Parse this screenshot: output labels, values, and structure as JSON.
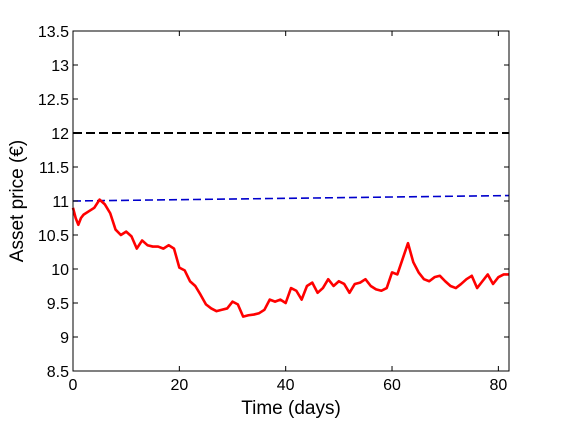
{
  "chart_data": {
    "type": "line",
    "title": "",
    "xlabel": "Time (days)",
    "ylabel": "Asset price (€)",
    "xlim": [
      0,
      82
    ],
    "ylim": [
      8.5,
      13.5
    ],
    "x_ticks": [
      0,
      20,
      40,
      60,
      80
    ],
    "y_ticks": [
      8.5,
      9,
      9.5,
      10,
      10.5,
      11,
      11.5,
      12,
      12.5,
      13,
      13.5
    ],
    "x_tick_labels": [
      "0",
      "20",
      "40",
      "60",
      "80"
    ],
    "y_tick_labels": [
      "8.5",
      "9",
      "9.5",
      "10",
      "10.5",
      "11",
      "11.5",
      "12",
      "12.5",
      "13",
      "13.5"
    ],
    "grid": false,
    "legend": "none",
    "series": [
      {
        "color": "#ff0000",
        "style": "solid",
        "x": [
          0,
          0.5,
          1,
          1.5,
          2,
          3,
          4,
          5,
          6,
          7,
          8,
          9,
          10,
          11,
          12,
          13,
          14,
          15,
          16,
          17,
          18,
          19,
          20,
          21,
          22,
          23,
          24,
          25,
          26,
          27,
          28,
          29,
          30,
          31,
          32,
          33,
          34,
          35,
          36,
          37,
          38,
          39,
          40,
          41,
          42,
          43,
          44,
          45,
          46,
          47,
          48,
          49,
          50,
          51,
          52,
          53,
          54,
          55,
          56,
          57,
          58,
          59,
          60,
          61,
          62,
          63,
          64,
          65,
          66,
          67,
          68,
          69,
          70,
          71,
          72,
          73,
          74,
          75,
          76,
          77,
          78,
          79,
          80,
          81,
          82
        ],
        "y": [
          10.9,
          10.75,
          10.65,
          10.75,
          10.8,
          10.85,
          10.9,
          11.02,
          10.95,
          10.82,
          10.58,
          10.5,
          10.55,
          10.48,
          10.3,
          10.42,
          10.35,
          10.33,
          10.33,
          10.3,
          10.35,
          10.3,
          10.02,
          9.98,
          9.82,
          9.75,
          9.62,
          9.48,
          9.42,
          9.38,
          9.4,
          9.42,
          9.52,
          9.48,
          9.3,
          9.32,
          9.33,
          9.35,
          9.4,
          9.55,
          9.52,
          9.55,
          9.5,
          9.72,
          9.68,
          9.55,
          9.75,
          9.8,
          9.65,
          9.72,
          9.85,
          9.75,
          9.82,
          9.78,
          9.65,
          9.78,
          9.8,
          9.85,
          9.75,
          9.7,
          9.68,
          9.72,
          9.95,
          9.92,
          10.15,
          10.38,
          10.1,
          9.95,
          9.85,
          9.82,
          9.88,
          9.9,
          9.82,
          9.75,
          9.72,
          9.78,
          9.85,
          9.9,
          9.72,
          9.82,
          9.92,
          9.78,
          9.88,
          9.92,
          9.92
        ]
      },
      {
        "color": "#000000",
        "style": "dashed",
        "x": [
          0,
          82
        ],
        "y": [
          12,
          12
        ]
      },
      {
        "color": "#0000cc",
        "style": "dashed",
        "x": [
          0,
          82
        ],
        "y": [
          11.0,
          11.08
        ]
      }
    ]
  }
}
